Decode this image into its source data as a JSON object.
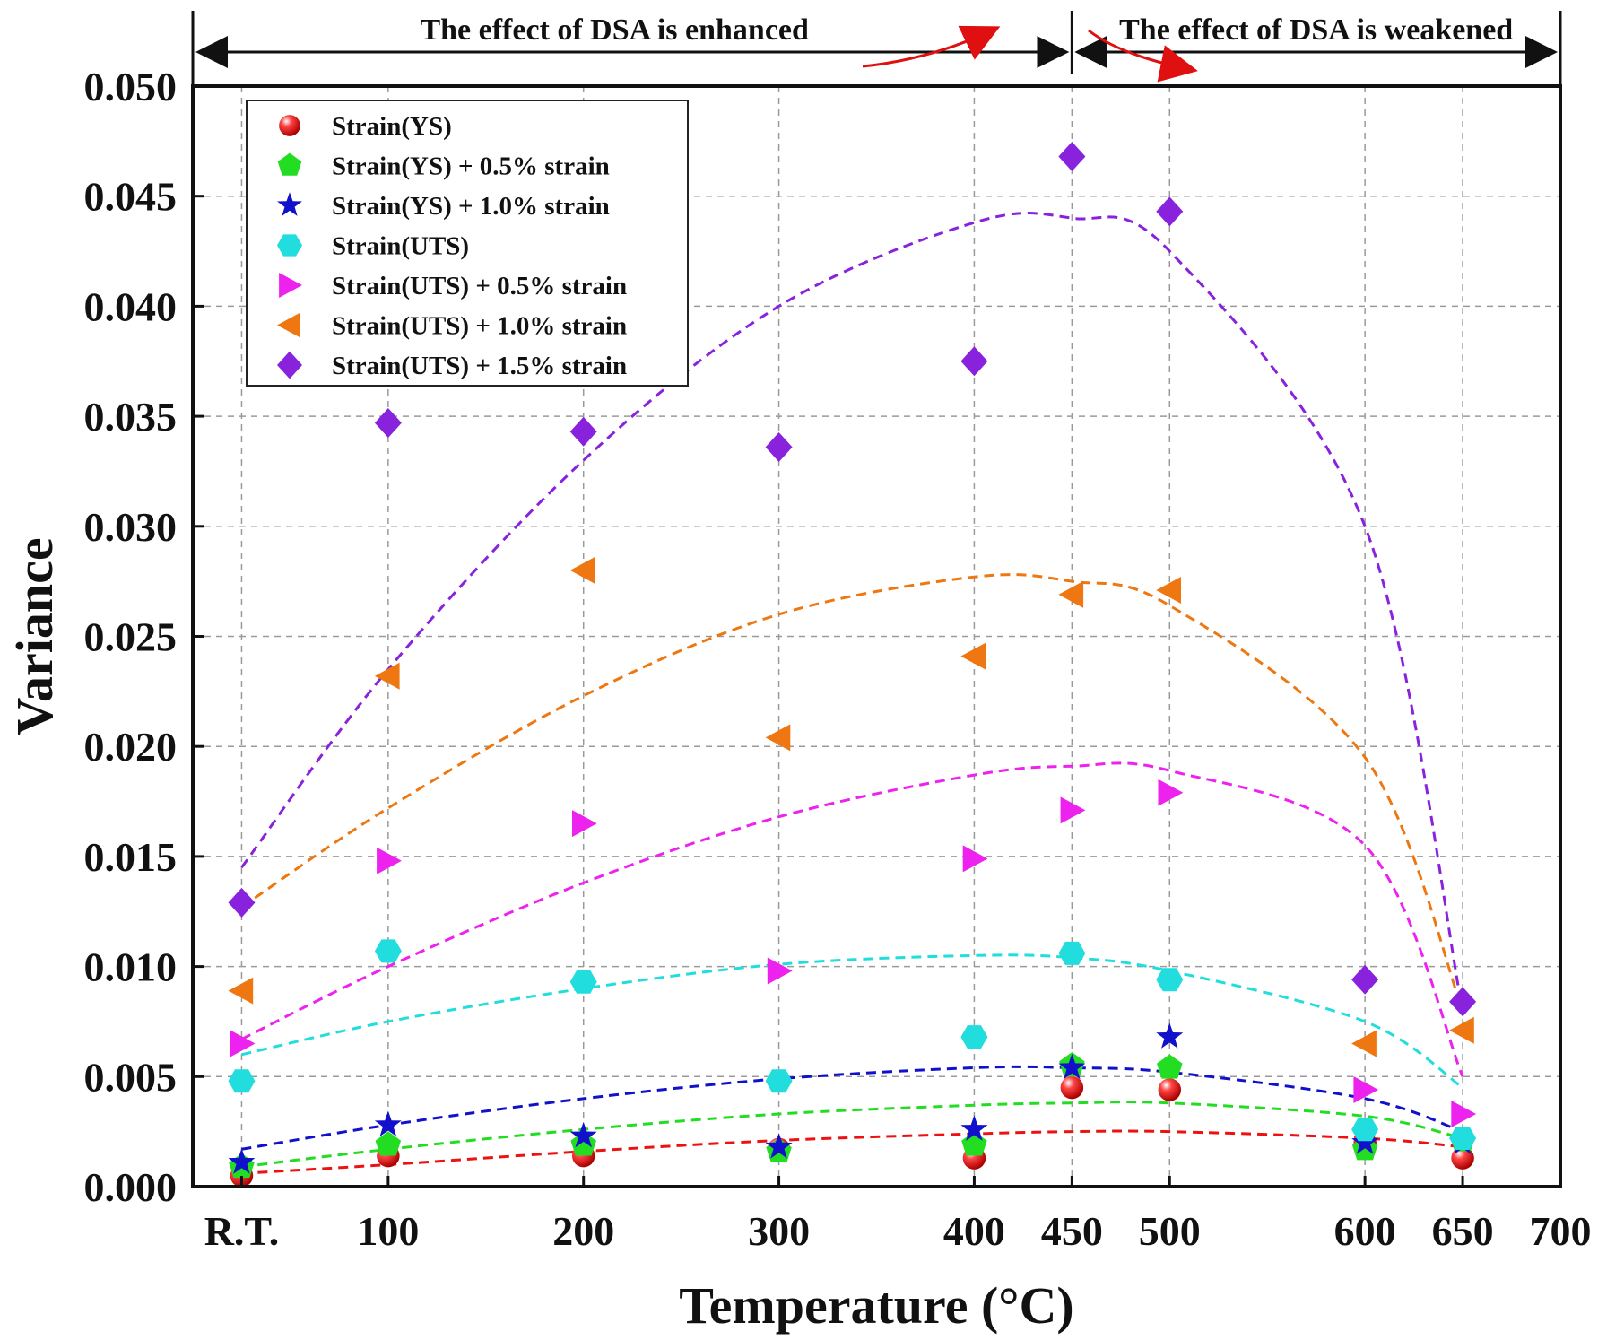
{
  "chart_data": {
    "type": "scatter",
    "title": "",
    "xlabel": "Temperature (°C)",
    "ylabel": "Variance",
    "x_tick_labels": [
      "R.T.",
      "100",
      "200",
      "300",
      "400",
      "450",
      "500",
      "600",
      "650",
      "700"
    ],
    "x_tick_values": [
      25,
      100,
      200,
      300,
      400,
      450,
      500,
      600,
      650,
      700
    ],
    "xlim": [
      0,
      700
    ],
    "ylim": [
      0,
      0.05
    ],
    "y_ticks": [
      "0.000",
      "0.005",
      "0.010",
      "0.015",
      "0.020",
      "0.025",
      "0.030",
      "0.035",
      "0.040",
      "0.045",
      "0.050"
    ],
    "grid": true,
    "legend_position": "top-left",
    "banner": {
      "left_text": "The effect of DSA is enhanced",
      "right_text": "The effect of DSA is weakened",
      "boundary_x": 450
    },
    "series": [
      {
        "name": "Strain(YS)",
        "marker": "sphere",
        "color": "#ee1111",
        "x": [
          25,
          100,
          200,
          300,
          400,
          450,
          500,
          600,
          650
        ],
        "values": [
          0.0005,
          0.0014,
          0.0014,
          0.0017,
          0.0013,
          0.0045,
          0.0044,
          0.002,
          0.0013
        ],
        "fit": [
          0.0006,
          0.001,
          0.0016,
          0.0021,
          0.0024,
          0.0025,
          0.0025,
          0.0022,
          0.0018
        ]
      },
      {
        "name": "Strain(YS) + 0.5% strain",
        "marker": "pentagon",
        "color": "#22dd22",
        "x": [
          25,
          100,
          200,
          300,
          400,
          450,
          500,
          600,
          650
        ],
        "values": [
          0.0009,
          0.0019,
          0.0019,
          0.0016,
          0.0019,
          0.0055,
          0.0054,
          0.0017,
          0.0021
        ],
        "fit": [
          0.0009,
          0.0017,
          0.0026,
          0.0033,
          0.0037,
          0.0038,
          0.0038,
          0.0032,
          0.0022
        ]
      },
      {
        "name": "Strain(YS) + 1.0% strain",
        "marker": "star",
        "color": "#1111cc",
        "x": [
          25,
          100,
          200,
          300,
          400,
          450,
          500,
          600,
          650
        ],
        "values": [
          0.0011,
          0.0028,
          0.0023,
          0.0018,
          0.0026,
          0.0054,
          0.0068,
          0.002,
          0.002
        ],
        "fit": [
          0.0017,
          0.0028,
          0.004,
          0.0049,
          0.0054,
          0.0054,
          0.0052,
          0.004,
          0.0025
        ]
      },
      {
        "name": "Strain(UTS)",
        "marker": "hexagon",
        "color": "#22dddd",
        "x": [
          25,
          100,
          200,
          300,
          400,
          450,
          500,
          600,
          650
        ],
        "values": [
          0.0048,
          0.0107,
          0.0093,
          0.0048,
          0.0068,
          0.0106,
          0.0094,
          0.0026,
          0.0022
        ],
        "fit": [
          0.006,
          0.0075,
          0.009,
          0.0101,
          0.0105,
          0.0104,
          0.0098,
          0.0075,
          0.0045
        ]
      },
      {
        "name": "Strain(UTS) + 0.5% strain",
        "marker": "triangle-right",
        "color": "#ee22ee",
        "x": [
          25,
          100,
          200,
          300,
          400,
          450,
          500,
          600,
          650
        ],
        "values": [
          0.0065,
          0.0148,
          0.0165,
          0.0098,
          0.0149,
          0.0171,
          0.0179,
          0.0044,
          0.0033
        ],
        "fit": [
          0.0067,
          0.01,
          0.0138,
          0.0168,
          0.0187,
          0.0191,
          0.0189,
          0.0155,
          0.005
        ]
      },
      {
        "name": "Strain(UTS) + 1.0% strain",
        "marker": "triangle-left",
        "color": "#ee7711",
        "x": [
          25,
          100,
          200,
          300,
          400,
          450,
          500,
          600,
          650
        ],
        "values": [
          0.0089,
          0.0232,
          0.028,
          0.0204,
          0.0241,
          0.0269,
          0.0271,
          0.0065,
          0.0071
        ],
        "fit": [
          0.0127,
          0.0172,
          0.0223,
          0.026,
          0.0277,
          0.0275,
          0.0264,
          0.0195,
          0.008
        ]
      },
      {
        "name": "Strain(UTS) + 1.5% strain",
        "marker": "diamond",
        "color": "#8822dd",
        "x": [
          25,
          100,
          200,
          300,
          400,
          450,
          500,
          600,
          650
        ],
        "values": [
          0.0129,
          0.0347,
          0.0343,
          0.0336,
          0.0375,
          0.0468,
          0.0443,
          0.0094,
          0.0084
        ],
        "fit": [
          0.0145,
          0.0235,
          0.033,
          0.04,
          0.0438,
          0.044,
          0.0425,
          0.03,
          0.008
        ]
      }
    ]
  }
}
